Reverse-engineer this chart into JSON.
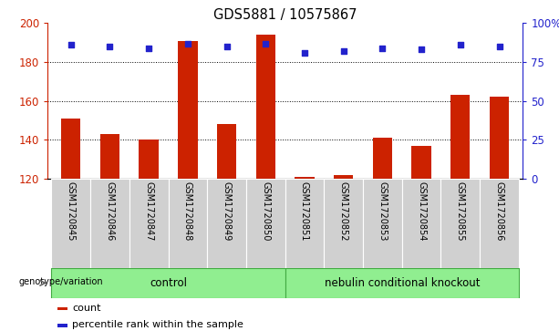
{
  "title": "GDS5881 / 10575867",
  "samples": [
    "GSM1720845",
    "GSM1720846",
    "GSM1720847",
    "GSM1720848",
    "GSM1720849",
    "GSM1720850",
    "GSM1720851",
    "GSM1720852",
    "GSM1720853",
    "GSM1720854",
    "GSM1720855",
    "GSM1720856"
  ],
  "counts": [
    151,
    143,
    140,
    191,
    148,
    194,
    121,
    122,
    141,
    137,
    163,
    162
  ],
  "percentiles": [
    86,
    85,
    84,
    87,
    85,
    87,
    81,
    82,
    84,
    83,
    86,
    85
  ],
  "ylim_left": [
    120,
    200
  ],
  "ylim_right": [
    0,
    100
  ],
  "yticks_left": [
    120,
    140,
    160,
    180,
    200
  ],
  "yticks_right": [
    0,
    25,
    50,
    75,
    100
  ],
  "yticklabels_right": [
    "0",
    "25",
    "50",
    "75",
    "100%"
  ],
  "bar_color": "#cc2200",
  "dot_color": "#2222cc",
  "bar_bottom": 120,
  "legend_items": [
    {
      "label": "count",
      "color": "#cc2200"
    },
    {
      "label": "percentile rank within the sample",
      "color": "#2222cc"
    }
  ],
  "grid_color": "black",
  "tick_label_color_left": "#cc2200",
  "tick_label_color_right": "#2222cc",
  "label_bg": "#d0d0d0",
  "group_colors": [
    "#90ee90",
    "#90ee90"
  ],
  "group_edge_color": "#44aa44"
}
